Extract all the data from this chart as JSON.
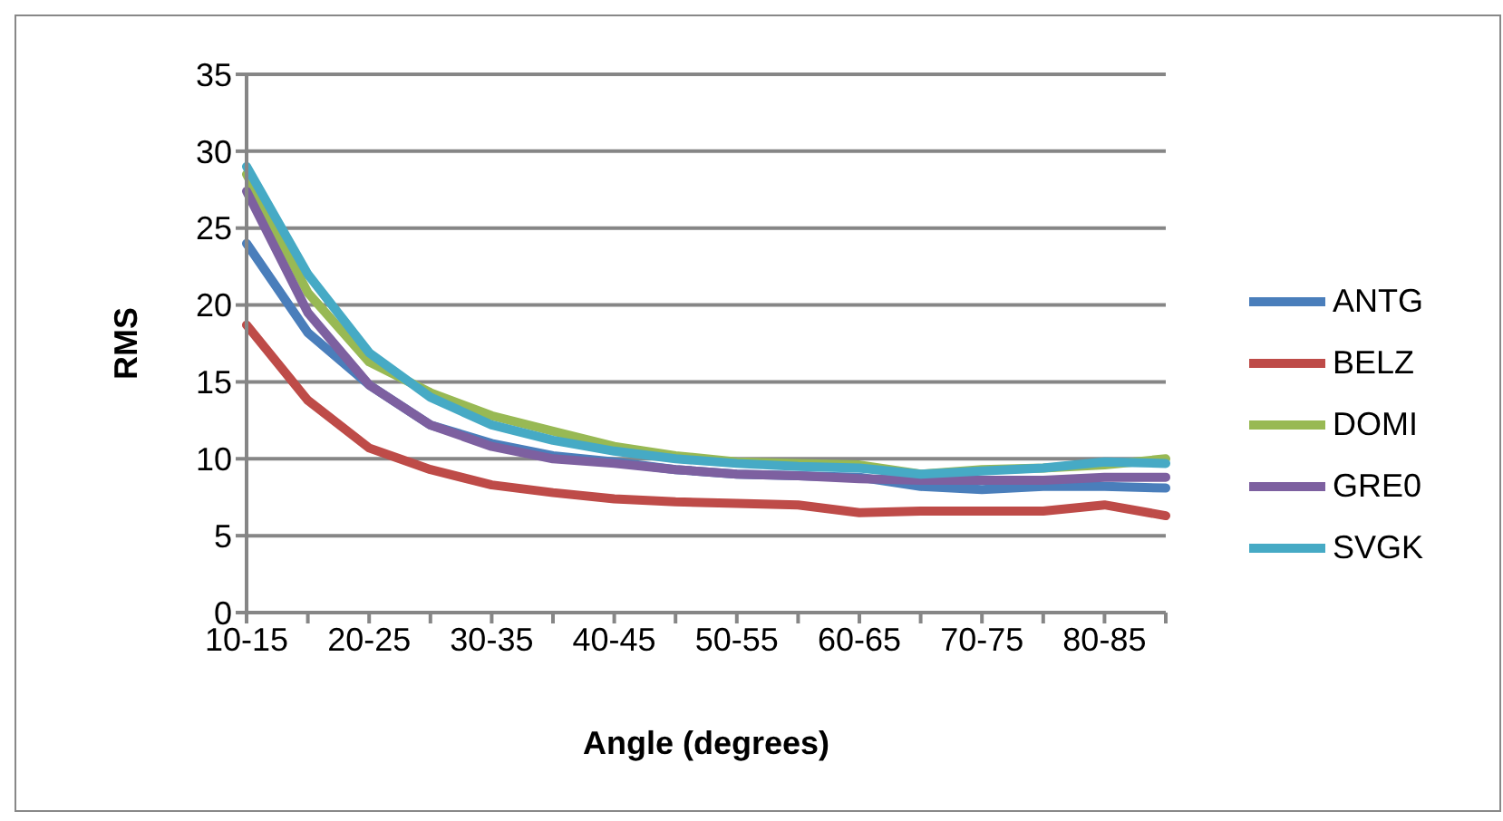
{
  "chart_data": {
    "type": "line",
    "xlabel": "Angle (degrees)",
    "ylabel": "RMS",
    "categories": [
      "10-15",
      null,
      "20-25",
      null,
      "30-35",
      null,
      "40-45",
      null,
      "50-55",
      null,
      "60-65",
      null,
      "70-75",
      null,
      "80-85",
      null
    ],
    "series": [
      {
        "name": "ANTG",
        "color": "#4a7ebb",
        "values": [
          24,
          18.2,
          14.8,
          12.2,
          11,
          10.2,
          9.8,
          9.3,
          9,
          8.9,
          8.8,
          8.2,
          8,
          8.2,
          8.2,
          8.1
        ]
      },
      {
        "name": "BELZ",
        "color": "#be4b48",
        "values": [
          18.7,
          13.8,
          10.7,
          9.3,
          8.3,
          7.8,
          7.4,
          7.2,
          7.1,
          7,
          6.5,
          6.6,
          6.6,
          6.6,
          7,
          6.3
        ]
      },
      {
        "name": "DOMI",
        "color": "#98b954",
        "values": [
          28.5,
          20.8,
          16.3,
          14.3,
          12.8,
          11.8,
          10.8,
          10.2,
          9.8,
          9.7,
          9.6,
          9,
          9.3,
          9.4,
          9.6,
          10
        ]
      },
      {
        "name": "GRE0",
        "color": "#7d60a0",
        "values": [
          27.4,
          19.5,
          14.8,
          12.2,
          10.8,
          10,
          9.7,
          9.3,
          9,
          8.9,
          8.7,
          8.6,
          8.6,
          8.6,
          8.8,
          8.8
        ]
      },
      {
        "name": "SVGK",
        "color": "#46aac5",
        "values": [
          29,
          22,
          16.9,
          14,
          12.2,
          11.2,
          10.5,
          10,
          9.7,
          9.5,
          9.4,
          9,
          9.2,
          9.4,
          9.8,
          9.7
        ]
      }
    ],
    "ylim": [
      0,
      35
    ],
    "yticks": [
      0,
      5,
      10,
      15,
      20,
      25,
      30,
      35
    ],
    "grid": "y",
    "legend": "right",
    "marker": "none",
    "line_style": "solid"
  }
}
